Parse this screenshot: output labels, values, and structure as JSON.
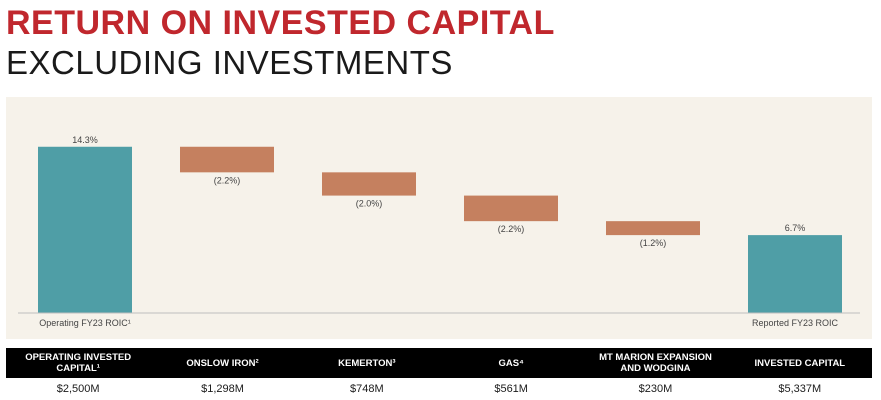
{
  "title_line1": "RETURN ON INVESTED CAPITAL",
  "title_line2": "EXCLUDING INVESTMENTS",
  "colors": {
    "title_red": "#c0272d",
    "total_bar": "#4f9ea6",
    "delta_bar": "#c5805f",
    "plot_bg": "#f6f2ea",
    "table_header_bg": "#000000"
  },
  "chart_data": {
    "type": "bar",
    "subtype": "waterfall",
    "categories": [
      "Operating FY23 ROIC¹",
      "",
      "",
      "",
      "",
      "Reported FY23 ROIC"
    ],
    "values": [
      14.3,
      -2.2,
      -2.0,
      -2.2,
      -1.2,
      6.7
    ],
    "value_labels": [
      "14.3%",
      "(2.2%)",
      "(2.0%)",
      "(2.2%)",
      "(1.2%)",
      "6.7%"
    ],
    "bar_kinds": [
      "total",
      "delta",
      "delta",
      "delta",
      "delta",
      "total"
    ],
    "ylim": [
      0,
      16
    ],
    "grid": false,
    "legend": "none"
  },
  "table": {
    "headers": [
      [
        "OPERATING INVESTED",
        "CAPITAL¹"
      ],
      [
        "ONSLOW IRON²"
      ],
      [
        "KEMERTON³"
      ],
      [
        "GAS⁴"
      ],
      [
        "MT MARION EXPANSION",
        "AND WODGINA"
      ],
      [
        "INVESTED CAPITAL"
      ]
    ],
    "values": [
      "$2,500M",
      "$1,298M",
      "$748M",
      "$561M",
      "$230M",
      "$5,337M"
    ]
  }
}
